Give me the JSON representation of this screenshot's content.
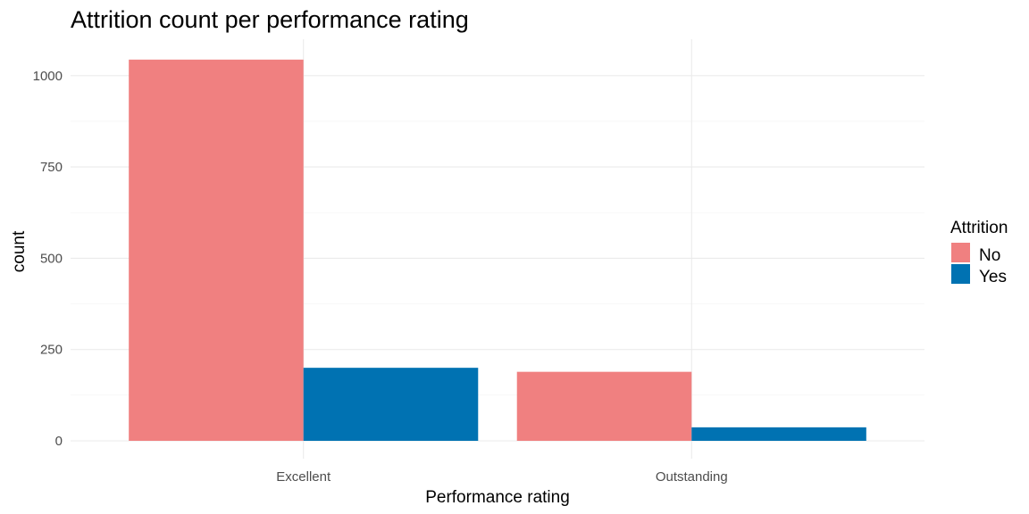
{
  "chart_data": {
    "type": "bar",
    "title": "Attrition count per performance rating",
    "xlabel": "Performance rating",
    "ylabel": "count",
    "categories": [
      "Excellent",
      "Outstanding"
    ],
    "series": [
      {
        "name": "No",
        "values": [
          1044,
          189
        ],
        "color": "#F08080"
      },
      {
        "name": "Yes",
        "values": [
          200,
          37
        ],
        "color": "#0072B2"
      }
    ],
    "ylim": [
      0,
      1100
    ],
    "yticks": [
      0,
      250,
      500,
      750,
      1000
    ],
    "ytick_labels": [
      "0",
      "250",
      "500",
      "750",
      "1000"
    ],
    "grid": true,
    "legend": {
      "title": "Attrition",
      "position": "right"
    }
  }
}
